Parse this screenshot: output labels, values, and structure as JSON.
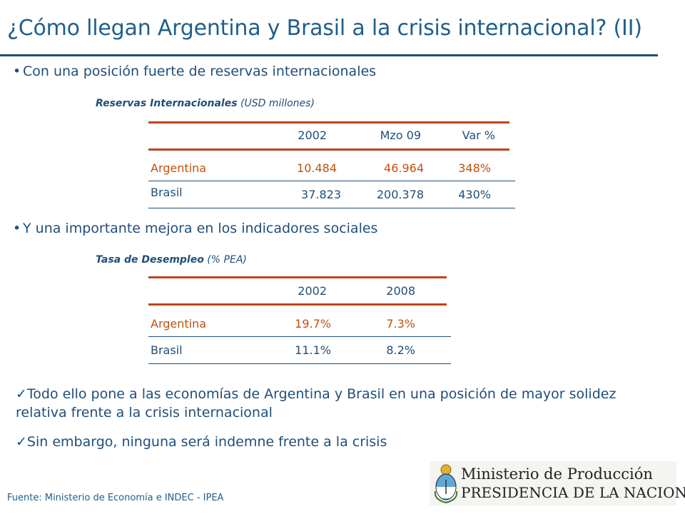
{
  "title": "¿Cómo llegan Argentina y Brasil a la crisis internacional? (II)",
  "bullet1": "Con una posición fuerte de reservas internacionales",
  "table1": {
    "caption_bold": "Reservas Internacionales",
    "caption_rest": " (USD millones)",
    "headers": [
      "2002",
      "Mzo 09",
      "Var %"
    ],
    "rows": [
      {
        "label": "Argentina",
        "values": [
          "10.484",
          "46.964",
          "348%"
        ]
      },
      {
        "label": "Brasil",
        "values": [
          "37.823",
          "200.378",
          "430%"
        ]
      }
    ]
  },
  "bullet2": "Y una importante mejora en los indicadores sociales",
  "table2": {
    "caption_bold": "Tasa de Desempleo",
    "caption_rest": " (% PEA)",
    "headers": [
      "2002",
      "2008"
    ],
    "rows": [
      {
        "label": "Argentina",
        "values": [
          "19.7%",
          "7.3%"
        ]
      },
      {
        "label": "Brasil",
        "values": [
          "11.1%",
          "8.2%"
        ]
      }
    ]
  },
  "conclusions": [
    "Todo ello pone a las economías de Argentina y Brasil en una posición de mayor solidez relativa frente a la crisis internacional",
    "Sin embargo, ninguna será indemne frente a la crisis"
  ],
  "footer": "Fuente: Ministerio de Economía e INDEC - IPEA",
  "logo": {
    "line1": "Ministerio de Producción",
    "line2": "PRESIDENCIA DE LA NACION",
    "icon": "argentina-coat-of-arms-icon"
  },
  "colors": {
    "blue": "#1f4e79",
    "red": "#c0431e",
    "argentina_text": "#c0510e"
  }
}
